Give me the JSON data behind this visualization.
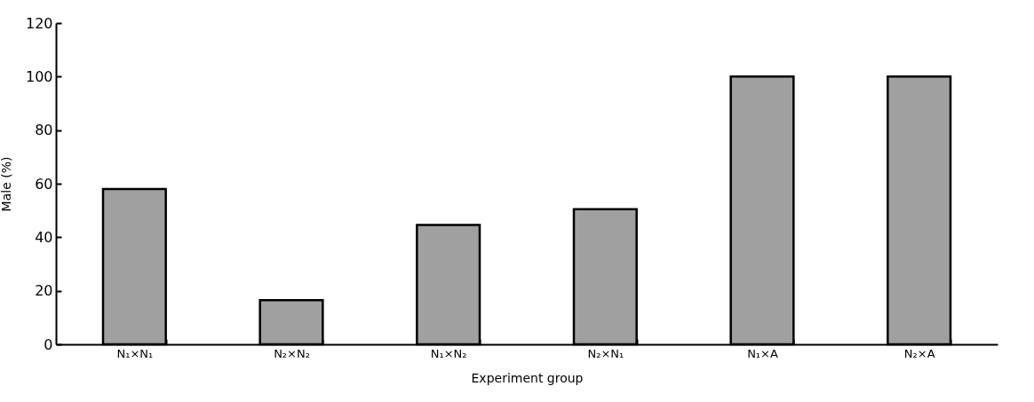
{
  "chart_data": {
    "type": "bar",
    "xlabel": "Experiment group",
    "ylabel": "Male (%)",
    "categories": [
      "N₁×N₁",
      "N₂×N₂",
      "N₁×N₂",
      "N₂×N₁",
      "N₁×A",
      "N₂×A"
    ],
    "values": [
      58,
      16.5,
      44.6,
      50.5,
      100,
      100
    ],
    "color": "#a0a0a0",
    "ylim": [
      0,
      120
    ],
    "yticks": [
      0,
      20,
      40,
      60,
      80,
      100,
      120
    ],
    "grid": false
  }
}
